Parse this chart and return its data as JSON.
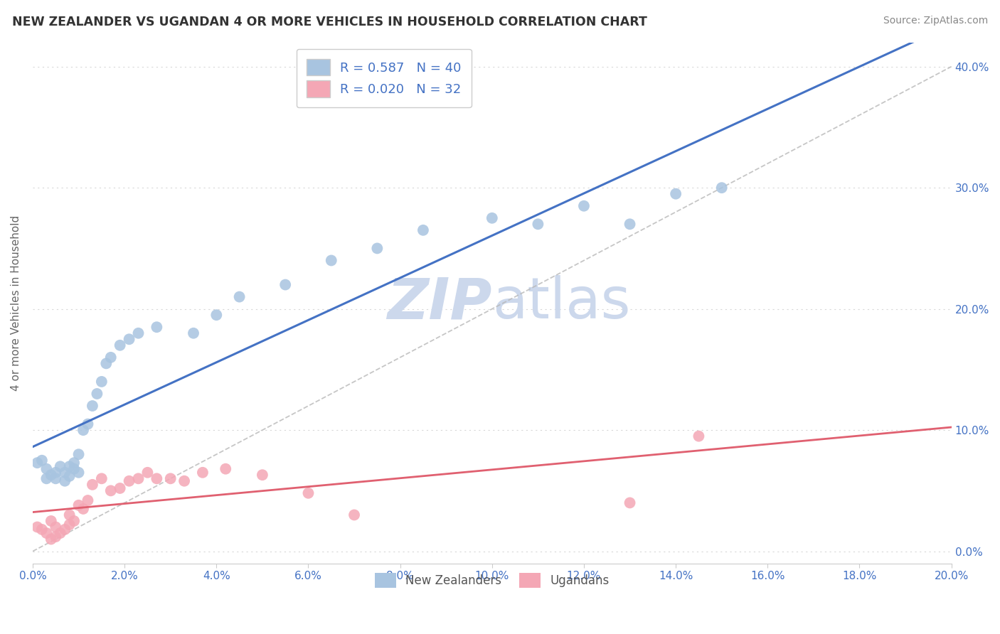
{
  "title": "NEW ZEALANDER VS UGANDAN 4 OR MORE VEHICLES IN HOUSEHOLD CORRELATION CHART",
  "source": "Source: ZipAtlas.com",
  "ylabel": "4 or more Vehicles in Household",
  "xlim": [
    0.0,
    0.2
  ],
  "ylim": [
    -0.01,
    0.42
  ],
  "xticks": [
    0.0,
    0.02,
    0.04,
    0.06,
    0.08,
    0.1,
    0.12,
    0.14,
    0.16,
    0.18,
    0.2
  ],
  "yticks": [
    0.0,
    0.1,
    0.2,
    0.3,
    0.4
  ],
  "nz_R": 0.587,
  "nz_N": 40,
  "ug_R": 0.02,
  "ug_N": 32,
  "nz_color": "#a8c4e0",
  "ug_color": "#f4a7b5",
  "nz_line_color": "#4472c4",
  "ug_line_color": "#e06070",
  "ref_line_color": "#b8b8b8",
  "watermark_color": "#ccd8ec",
  "background_color": "#ffffff",
  "grid_color": "#d8d8d8",
  "title_color": "#333333",
  "source_color": "#888888",
  "tick_color": "#4472c4",
  "ylabel_color": "#666666",
  "nz_x": [
    0.001,
    0.002,
    0.003,
    0.003,
    0.004,
    0.005,
    0.005,
    0.006,
    0.007,
    0.007,
    0.008,
    0.008,
    0.009,
    0.009,
    0.01,
    0.01,
    0.011,
    0.012,
    0.013,
    0.014,
    0.015,
    0.016,
    0.017,
    0.019,
    0.021,
    0.023,
    0.027,
    0.035,
    0.04,
    0.045,
    0.055,
    0.065,
    0.075,
    0.085,
    0.1,
    0.11,
    0.12,
    0.13,
    0.14,
    0.15
  ],
  "nz_y": [
    0.073,
    0.075,
    0.068,
    0.06,
    0.063,
    0.065,
    0.06,
    0.07,
    0.058,
    0.065,
    0.07,
    0.062,
    0.068,
    0.073,
    0.08,
    0.065,
    0.1,
    0.105,
    0.12,
    0.13,
    0.14,
    0.155,
    0.16,
    0.17,
    0.175,
    0.18,
    0.185,
    0.18,
    0.195,
    0.21,
    0.22,
    0.24,
    0.25,
    0.265,
    0.275,
    0.27,
    0.285,
    0.27,
    0.295,
    0.3
  ],
  "ug_x": [
    0.001,
    0.002,
    0.003,
    0.004,
    0.004,
    0.005,
    0.005,
    0.006,
    0.007,
    0.008,
    0.008,
    0.009,
    0.01,
    0.011,
    0.012,
    0.013,
    0.015,
    0.017,
    0.019,
    0.021,
    0.023,
    0.025,
    0.027,
    0.03,
    0.033,
    0.037,
    0.042,
    0.05,
    0.06,
    0.07,
    0.13,
    0.145
  ],
  "ug_y": [
    0.02,
    0.018,
    0.015,
    0.025,
    0.01,
    0.02,
    0.012,
    0.015,
    0.018,
    0.022,
    0.03,
    0.025,
    0.038,
    0.035,
    0.042,
    0.055,
    0.06,
    0.05,
    0.052,
    0.058,
    0.06,
    0.065,
    0.06,
    0.06,
    0.058,
    0.065,
    0.068,
    0.063,
    0.048,
    0.03,
    0.04,
    0.095
  ]
}
